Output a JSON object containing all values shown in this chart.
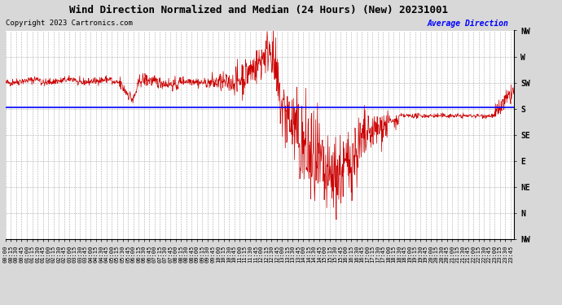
{
  "title": "Wind Direction Normalized and Median (24 Hours) (New) 20231001",
  "copyright": "Copyright 2023 Cartronics.com",
  "legend_label": "Average Direction",
  "legend_color": "#0000ff",
  "line_color": "#cc0000",
  "avg_line_color": "#0000ff",
  "avg_line_value": 183,
  "background_color": "#d8d8d8",
  "plot_bg_color": "#ffffff",
  "grid_color": "#999999",
  "ytick_labels": [
    "NW",
    "W",
    "SW",
    "S",
    "SE",
    "E",
    "NE",
    "N",
    "NW"
  ],
  "ytick_values": [
    315,
    270,
    225,
    180,
    135,
    90,
    45,
    0,
    -45
  ],
  "ymin": -45,
  "ymax": 315,
  "xmin": 0,
  "xmax": 1435,
  "title_fontsize": 9,
  "axis_fontsize": 5,
  "copyright_fontsize": 6.5,
  "legend_fontsize": 7
}
